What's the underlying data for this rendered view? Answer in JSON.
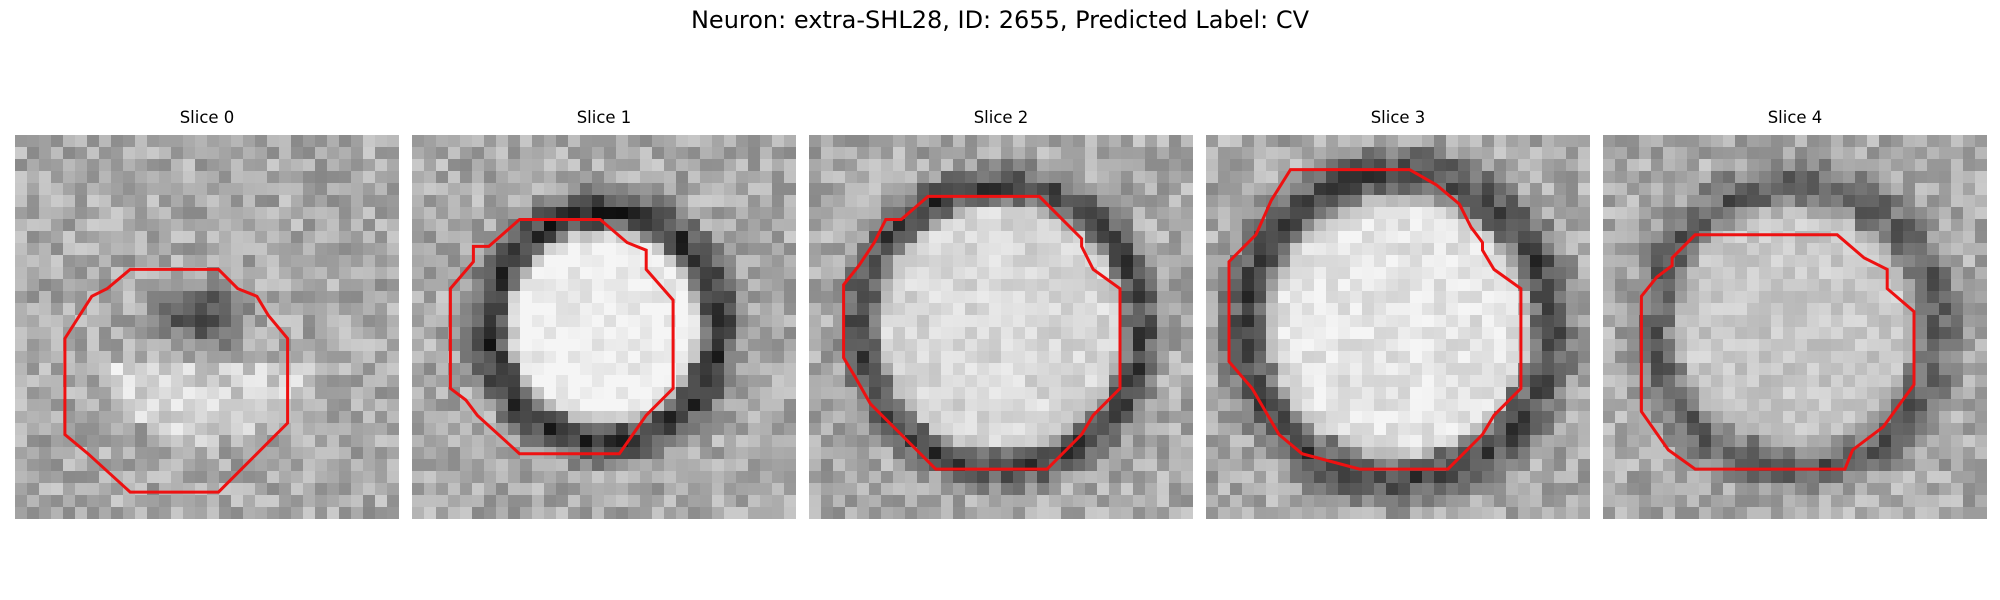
{
  "figure": {
    "title": "Neuron: extra-SHL28, ID: 2655, Predicted Label: CV"
  },
  "panels": [
    {
      "title": "Slice 0",
      "seed": 11,
      "inner": 205,
      "ring_intensity": 0.2,
      "ring_w": 0.12,
      "ring_r": 0.0,
      "blob": 1
    },
    {
      "title": "Slice 1",
      "seed": 23,
      "inner": 240,
      "ring_intensity": 0.85,
      "ring_w": 0.05,
      "ring_r": 0.3,
      "blob": 0
    },
    {
      "title": "Slice 2",
      "seed": 37,
      "inner": 215,
      "ring_intensity": 0.75,
      "ring_w": 0.045,
      "ring_r": 0.37,
      "blob": 0
    },
    {
      "title": "Slice 3",
      "seed": 41,
      "inner": 228,
      "ring_intensity": 0.7,
      "ring_w": 0.06,
      "ring_r": 0.4,
      "blob": 0
    },
    {
      "title": "Slice 4",
      "seed": 53,
      "inner": 200,
      "ring_intensity": 0.55,
      "ring_w": 0.055,
      "ring_r": 0.37,
      "blob": 0
    }
  ],
  "contour_color": "#ee1111",
  "contours": [
    [
      [
        0.3,
        0.35
      ],
      [
        0.53,
        0.35
      ],
      [
        0.58,
        0.4
      ],
      [
        0.63,
        0.42
      ],
      [
        0.66,
        0.47
      ],
      [
        0.71,
        0.53
      ],
      [
        0.71,
        0.75
      ],
      [
        0.66,
        0.8
      ],
      [
        0.6,
        0.86
      ],
      [
        0.53,
        0.93
      ],
      [
        0.3,
        0.93
      ],
      [
        0.19,
        0.83
      ],
      [
        0.13,
        0.78
      ],
      [
        0.13,
        0.53
      ],
      [
        0.2,
        0.42
      ],
      [
        0.24,
        0.4
      ]
    ],
    [
      [
        0.28,
        0.22
      ],
      [
        0.49,
        0.22
      ],
      [
        0.56,
        0.28
      ],
      [
        0.61,
        0.3
      ],
      [
        0.61,
        0.35
      ],
      [
        0.68,
        0.43
      ],
      [
        0.68,
        0.66
      ],
      [
        0.61,
        0.73
      ],
      [
        0.54,
        0.83
      ],
      [
        0.28,
        0.83
      ],
      [
        0.17,
        0.73
      ],
      [
        0.14,
        0.69
      ],
      [
        0.1,
        0.66
      ],
      [
        0.1,
        0.4
      ],
      [
        0.16,
        0.33
      ],
      [
        0.16,
        0.29
      ],
      [
        0.2,
        0.29
      ]
    ],
    [
      [
        0.31,
        0.16
      ],
      [
        0.6,
        0.16
      ],
      [
        0.71,
        0.27
      ],
      [
        0.71,
        0.29
      ],
      [
        0.74,
        0.35
      ],
      [
        0.81,
        0.4
      ],
      [
        0.81,
        0.66
      ],
      [
        0.74,
        0.73
      ],
      [
        0.71,
        0.78
      ],
      [
        0.62,
        0.87
      ],
      [
        0.33,
        0.87
      ],
      [
        0.24,
        0.78
      ],
      [
        0.16,
        0.7
      ],
      [
        0.12,
        0.63
      ],
      [
        0.09,
        0.58
      ],
      [
        0.09,
        0.39
      ],
      [
        0.13,
        0.34
      ],
      [
        0.17,
        0.28
      ],
      [
        0.2,
        0.22
      ],
      [
        0.24,
        0.22
      ]
    ],
    [
      [
        0.22,
        0.09
      ],
      [
        0.53,
        0.09
      ],
      [
        0.6,
        0.13
      ],
      [
        0.66,
        0.18
      ],
      [
        0.69,
        0.24
      ],
      [
        0.72,
        0.28
      ],
      [
        0.72,
        0.3
      ],
      [
        0.75,
        0.35
      ],
      [
        0.82,
        0.4
      ],
      [
        0.82,
        0.66
      ],
      [
        0.75,
        0.73
      ],
      [
        0.72,
        0.78
      ],
      [
        0.63,
        0.87
      ],
      [
        0.4,
        0.87
      ],
      [
        0.25,
        0.83
      ],
      [
        0.19,
        0.78
      ],
      [
        0.12,
        0.66
      ],
      [
        0.06,
        0.59
      ],
      [
        0.06,
        0.33
      ],
      [
        0.13,
        0.26
      ],
      [
        0.17,
        0.17
      ]
    ],
    [
      [
        0.24,
        0.26
      ],
      [
        0.61,
        0.26
      ],
      [
        0.68,
        0.32
      ],
      [
        0.74,
        0.35
      ],
      [
        0.74,
        0.4
      ],
      [
        0.81,
        0.46
      ],
      [
        0.81,
        0.65
      ],
      [
        0.73,
        0.76
      ],
      [
        0.65,
        0.82
      ],
      [
        0.63,
        0.87
      ],
      [
        0.24,
        0.87
      ],
      [
        0.17,
        0.82
      ],
      [
        0.1,
        0.72
      ],
      [
        0.1,
        0.42
      ],
      [
        0.14,
        0.37
      ],
      [
        0.18,
        0.34
      ],
      [
        0.18,
        0.32
      ]
    ]
  ]
}
